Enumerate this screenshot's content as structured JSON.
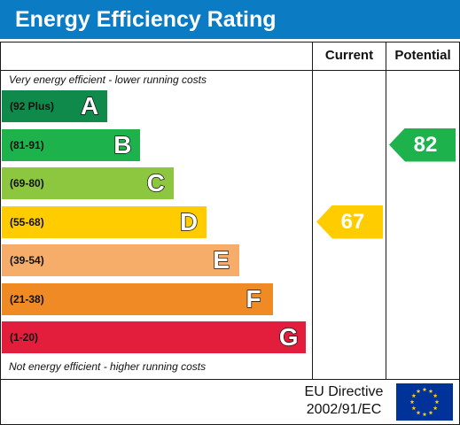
{
  "title": "Energy Efficiency Rating",
  "columns": {
    "current": "Current",
    "potential": "Potential"
  },
  "notes": {
    "top": "Very energy efficient - lower running costs",
    "bottom": "Not energy efficient - higher running costs"
  },
  "footer": {
    "directive_line1": "EU Directive",
    "directive_line2": "2002/91/EC"
  },
  "colors": {
    "title_bar": "#0b7bc4",
    "A": "#0f8a4a",
    "B": "#1db24b",
    "C": "#8dc63f",
    "D": "#ffcc00",
    "E": "#f7ad6a",
    "F": "#f08a24",
    "G": "#e31d3c",
    "eu_blue": "#003399",
    "eu_star": "#ffcc00"
  },
  "chart_data": {
    "type": "bar",
    "title": "Energy Efficiency Rating",
    "bands": [
      {
        "letter": "A",
        "range": "(92 Plus)"
      },
      {
        "letter": "B",
        "range": "(81-91)"
      },
      {
        "letter": "C",
        "range": "(69-80)"
      },
      {
        "letter": "D",
        "range": "(55-68)"
      },
      {
        "letter": "E",
        "range": "(39-54)"
      },
      {
        "letter": "F",
        "range": "(21-38)"
      },
      {
        "letter": "G",
        "range": "(1-20)"
      }
    ],
    "current": {
      "value": "67",
      "band": "D"
    },
    "potential": {
      "value": "82",
      "band": "B"
    }
  }
}
